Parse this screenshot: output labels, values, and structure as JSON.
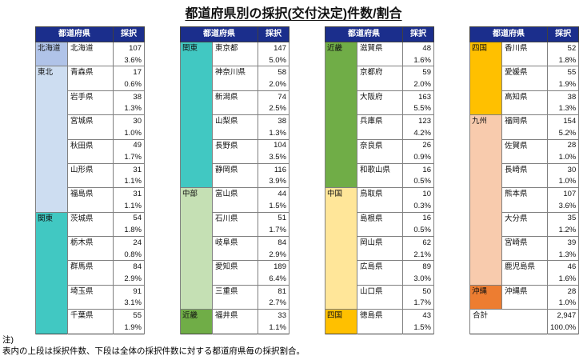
{
  "title": "都道府県別の採択(交付決定)件数/割合",
  "note": {
    "label": "注)",
    "text": "表内の上段は採択件数、下段は全体の採択件数に対する都道府県毎の採択割合。"
  },
  "column_headers": {
    "prefecture": "都道府県",
    "adopted": "採択"
  },
  "colors": {
    "header_bg": "#1B2E8C",
    "header_text": "#FFFFFF",
    "region_hokkaido": "#B0C3E8",
    "region_tohoku": "#CDDDF1",
    "region_kanto": "#41C8C2",
    "region_chubu": "#C5E0B4",
    "region_kinki": "#70AD47",
    "region_chugoku": "#FFE699",
    "region_shikoku": "#FFC000",
    "region_kyushu": "#F8CBAD",
    "region_okinawa": "#ED7D31"
  },
  "tables": [
    {
      "groups": [
        {
          "region": "北海道",
          "color": "#B0C3E8",
          "rows": [
            {
              "name": "北海道",
              "count": "107",
              "pct": "3.6%"
            }
          ]
        },
        {
          "region": "東北",
          "color": "#CDDDF1",
          "rows": [
            {
              "name": "青森県",
              "count": "17",
              "pct": "0.6%"
            },
            {
              "name": "岩手県",
              "count": "38",
              "pct": "1.3%"
            },
            {
              "name": "宮城県",
              "count": "30",
              "pct": "1.0%"
            },
            {
              "name": "秋田県",
              "count": "49",
              "pct": "1.7%"
            },
            {
              "name": "山形県",
              "count": "31",
              "pct": "1.1%"
            },
            {
              "name": "福島県",
              "count": "31",
              "pct": "1.1%"
            }
          ]
        },
        {
          "region": "関東",
          "color": "#41C8C2",
          "rows": [
            {
              "name": "茨城県",
              "count": "54",
              "pct": "1.8%"
            },
            {
              "name": "栃木県",
              "count": "24",
              "pct": "0.8%"
            },
            {
              "name": "群馬県",
              "count": "84",
              "pct": "2.9%"
            },
            {
              "name": "埼玉県",
              "count": "91",
              "pct": "3.1%"
            },
            {
              "name": "千葉県",
              "count": "55",
              "pct": "1.9%"
            }
          ]
        }
      ]
    },
    {
      "groups": [
        {
          "region": "関東",
          "color": "#41C8C2",
          "rows": [
            {
              "name": "東京都",
              "count": "147",
              "pct": "5.0%"
            },
            {
              "name": "神奈川県",
              "count": "58",
              "pct": "2.0%"
            },
            {
              "name": "新潟県",
              "count": "74",
              "pct": "2.5%"
            },
            {
              "name": "山梨県",
              "count": "38",
              "pct": "1.3%"
            },
            {
              "name": "長野県",
              "count": "104",
              "pct": "3.5%"
            },
            {
              "name": "静岡県",
              "count": "116",
              "pct": "3.9%"
            }
          ]
        },
        {
          "region": "中部",
          "color": "#C5E0B4",
          "rows": [
            {
              "name": "富山県",
              "count": "44",
              "pct": "1.5%"
            },
            {
              "name": "石川県",
              "count": "51",
              "pct": "1.7%"
            },
            {
              "name": "岐阜県",
              "count": "84",
              "pct": "2.9%"
            },
            {
              "name": "愛知県",
              "count": "189",
              "pct": "6.4%"
            },
            {
              "name": "三重県",
              "count": "81",
              "pct": "2.7%"
            }
          ]
        },
        {
          "region": "近畿",
          "color": "#70AD47",
          "rows": [
            {
              "name": "福井県",
              "count": "33",
              "pct": "1.1%"
            }
          ]
        }
      ]
    },
    {
      "groups": [
        {
          "region": "近畿",
          "color": "#70AD47",
          "rows": [
            {
              "name": "滋賀県",
              "count": "48",
              "pct": "1.6%"
            },
            {
              "name": "京都府",
              "count": "59",
              "pct": "2.0%"
            },
            {
              "name": "大阪府",
              "count": "163",
              "pct": "5.5%"
            },
            {
              "name": "兵庫県",
              "count": "123",
              "pct": "4.2%"
            },
            {
              "name": "奈良県",
              "count": "26",
              "pct": "0.9%"
            },
            {
              "name": "和歌山県",
              "count": "16",
              "pct": "0.5%"
            }
          ]
        },
        {
          "region": "中国",
          "color": "#FFE699",
          "rows": [
            {
              "name": "鳥取県",
              "count": "10",
              "pct": "0.3%"
            },
            {
              "name": "島根県",
              "count": "16",
              "pct": "0.5%"
            },
            {
              "name": "岡山県",
              "count": "62",
              "pct": "2.1%"
            },
            {
              "name": "広島県",
              "count": "89",
              "pct": "3.0%"
            },
            {
              "name": "山口県",
              "count": "50",
              "pct": "1.7%"
            }
          ]
        },
        {
          "region": "四国",
          "color": "#FFC000",
          "rows": [
            {
              "name": "徳島県",
              "count": "43",
              "pct": "1.5%"
            }
          ]
        }
      ]
    },
    {
      "groups": [
        {
          "region": "四国",
          "color": "#FFC000",
          "rows": [
            {
              "name": "香川県",
              "count": "52",
              "pct": "1.8%"
            },
            {
              "name": "愛媛県",
              "count": "55",
              "pct": "1.9%"
            },
            {
              "name": "高知県",
              "count": "38",
              "pct": "1.3%"
            }
          ]
        },
        {
          "region": "九州",
          "color": "#F8CBAD",
          "rows": [
            {
              "name": "福岡県",
              "count": "154",
              "pct": "5.2%"
            },
            {
              "name": "佐賀県",
              "count": "28",
              "pct": "1.0%"
            },
            {
              "name": "長崎県",
              "count": "30",
              "pct": "1.0%"
            },
            {
              "name": "熊本県",
              "count": "107",
              "pct": "3.6%"
            },
            {
              "name": "大分県",
              "count": "35",
              "pct": "1.2%"
            },
            {
              "name": "宮崎県",
              "count": "39",
              "pct": "1.3%"
            },
            {
              "name": "鹿児島県",
              "count": "46",
              "pct": "1.6%"
            }
          ]
        },
        {
          "region": "沖縄",
          "color": "#ED7D31",
          "rows": [
            {
              "name": "沖縄県",
              "count": "28",
              "pct": "1.0%"
            }
          ]
        }
      ],
      "total": {
        "label": "合計",
        "count": "2,947",
        "pct": "100.0%"
      }
    }
  ]
}
